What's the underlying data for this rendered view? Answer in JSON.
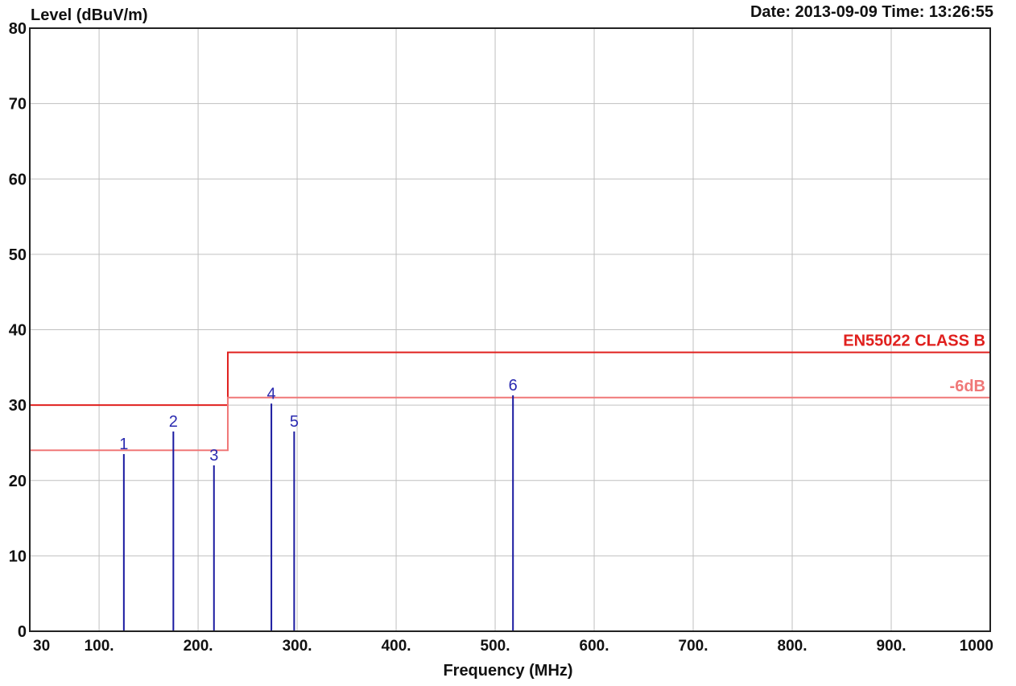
{
  "header": {
    "y_axis_title": "Level (dBuV/m)",
    "date_time": "Date: 2013-09-09  Time: 13:26:55",
    "x_axis_title": "Frequency (MHz)"
  },
  "colors": {
    "limit": "#e0201e",
    "margin": "#f07878",
    "peaks": "#1a1aa0",
    "grid": "#c0c0c0",
    "frame": "#222222"
  },
  "chart_data": {
    "type": "bar",
    "title": "",
    "xlabel": "Frequency (MHz)",
    "ylabel": "Level (dBuV/m)",
    "xlim": [
      30,
      1000
    ],
    "ylim": [
      0,
      80
    ],
    "grid": true,
    "x_ticks": [
      {
        "value": 30,
        "label": "30"
      },
      {
        "value": 100,
        "label": "100."
      },
      {
        "value": 200,
        "label": "200."
      },
      {
        "value": 300,
        "label": "300."
      },
      {
        "value": 400,
        "label": "400."
      },
      {
        "value": 500,
        "label": "500."
      },
      {
        "value": 600,
        "label": "600."
      },
      {
        "value": 700,
        "label": "700."
      },
      {
        "value": 800,
        "label": "800."
      },
      {
        "value": 900,
        "label": "900."
      },
      {
        "value": 1000,
        "label": "1000"
      }
    ],
    "y_ticks": [
      {
        "value": 0,
        "label": "0"
      },
      {
        "value": 10,
        "label": "10"
      },
      {
        "value": 20,
        "label": "20"
      },
      {
        "value": 30,
        "label": "30"
      },
      {
        "value": 40,
        "label": "40"
      },
      {
        "value": 50,
        "label": "50"
      },
      {
        "value": 60,
        "label": "60"
      },
      {
        "value": 70,
        "label": "70"
      },
      {
        "value": 80,
        "label": "80"
      }
    ],
    "limit_lines": [
      {
        "name": "EN55022 CLASS B",
        "points": [
          [
            30,
            30
          ],
          [
            230,
            30
          ],
          [
            230,
            37
          ],
          [
            1000,
            37
          ]
        ]
      },
      {
        "name": "-6dB",
        "points": [
          [
            30,
            24
          ],
          [
            230,
            24
          ],
          [
            230,
            31
          ],
          [
            1000,
            31
          ]
        ]
      }
    ],
    "peaks": [
      {
        "label": "1",
        "x": 125,
        "y": 23.5
      },
      {
        "label": "2",
        "x": 175,
        "y": 26.5
      },
      {
        "label": "3",
        "x": 216,
        "y": 22.0
      },
      {
        "label": "4",
        "x": 274,
        "y": 30.2
      },
      {
        "label": "5",
        "x": 297,
        "y": 26.5
      },
      {
        "label": "6",
        "x": 518,
        "y": 31.3
      }
    ]
  }
}
